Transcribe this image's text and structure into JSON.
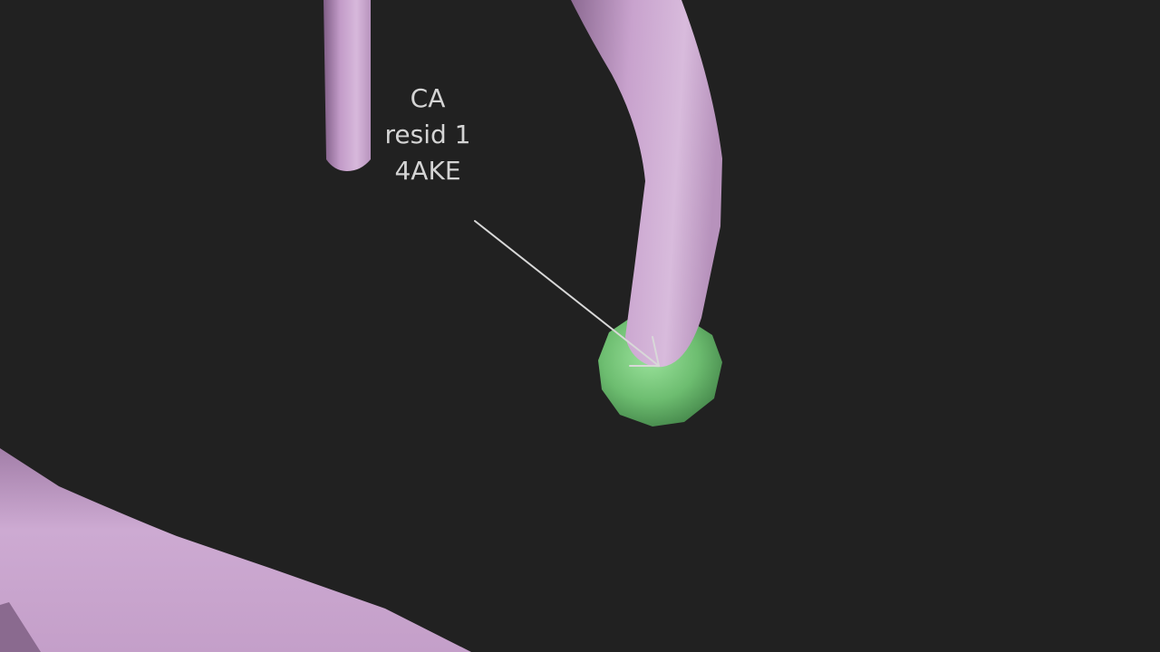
{
  "annotation": {
    "lines": [
      "CA",
      "resid 1",
      "4AKE"
    ]
  },
  "colors": {
    "background": "#212121",
    "cartoon_tube": "#c7a3cc",
    "atom_sphere": "#6fbf73",
    "label_text": "#d4d4d4",
    "arrow": "#d8d8d8"
  }
}
